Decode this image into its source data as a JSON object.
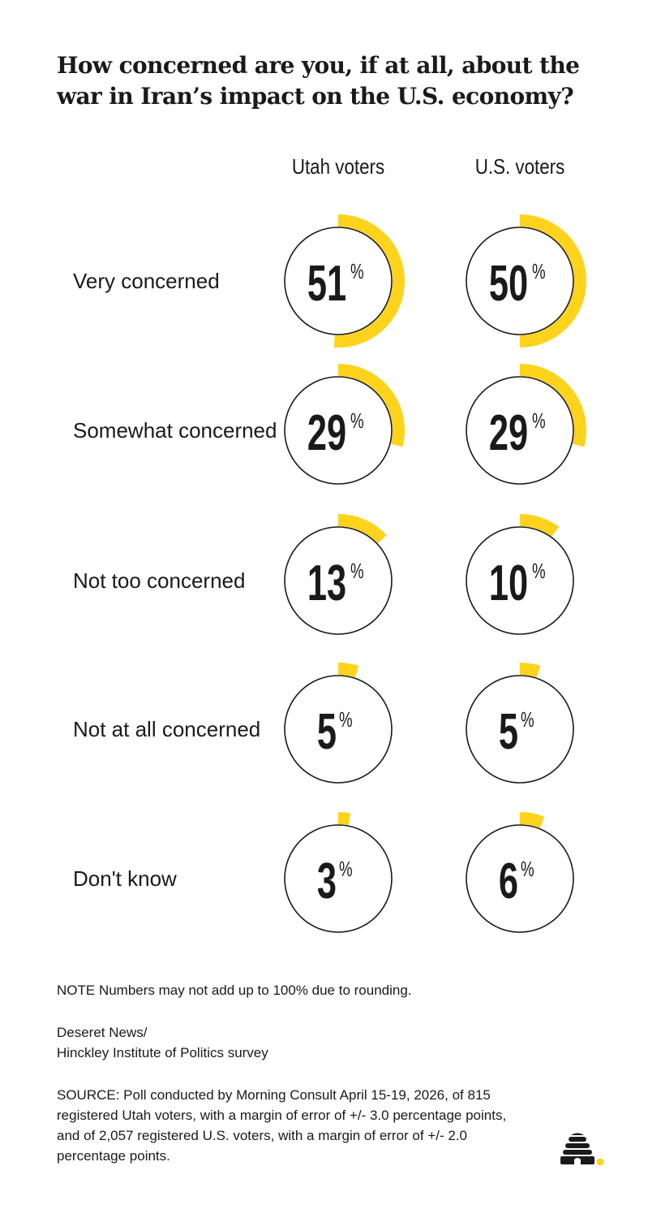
{
  "title": "How concerned are you, if at all, about the war in Iran’s impact on the U.S. economy?",
  "chart_data": {
    "type": "donut",
    "series": [
      {
        "name": "Utah voters",
        "values": [
          51,
          29,
          13,
          5,
          3
        ]
      },
      {
        "name": "U.S. voters",
        "values": [
          50,
          29,
          10,
          5,
          6
        ]
      }
    ],
    "categories": [
      "Very concerned",
      "Somewhat concerned",
      "Not too concerned",
      "Not at all concerned",
      "Don't know"
    ],
    "unit": "%"
  },
  "colors": {
    "accent": "#FFD31C",
    "ink": "#1a1a1a",
    "background": "#ffffff"
  },
  "footer": {
    "note": "NOTE Numbers may not add up to 100% due to rounding.",
    "org_line1": "Deseret News/",
    "org_line2": "Hinckley Institute of Politics survey",
    "source": "SOURCE: Poll conducted by Morning Consult April 15-19, 2026, of 815 registered Utah voters, with a margin of error of +/- 3.0 percentage points, and of 2,057 registered U.S. voters, with a margin of error of +/- 2.0 percentage points."
  },
  "logo": {
    "icon": "beehive-icon"
  }
}
